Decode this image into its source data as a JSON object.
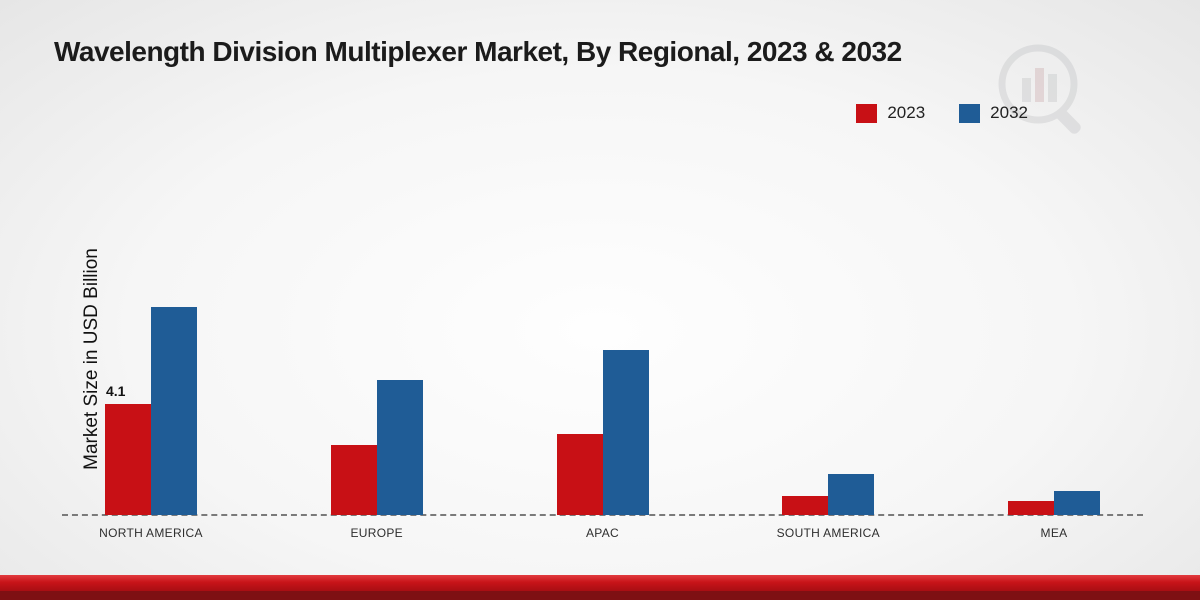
{
  "title": "Wavelength Division Multiplexer Market, By Regional, 2023 & 2032",
  "ylabel": "Market Size in USD Billion",
  "colors": {
    "series_2023": "#c81015",
    "series_2032": "#1f5c96"
  },
  "chart_data": {
    "type": "bar",
    "title": "Wavelength Division Multiplexer Market, By Regional, 2023 & 2032",
    "xlabel": "",
    "ylabel": "Market Size in USD Billion",
    "categories": [
      "NORTH AMERICA",
      "EUROPE",
      "APAC",
      "SOUTH AMERICA",
      "MEA"
    ],
    "series": [
      {
        "name": "2023",
        "color": "#c81015",
        "values": [
          4.1,
          2.6,
          3.0,
          0.7,
          0.5
        ]
      },
      {
        "name": "2032",
        "color": "#1f5c96",
        "values": [
          7.7,
          5.0,
          6.1,
          1.5,
          0.9
        ]
      }
    ],
    "annotations": [
      {
        "category": "NORTH AMERICA",
        "series": "2023",
        "text": "4.1"
      }
    ],
    "ylim": [
      0,
      8.5
    ],
    "grid": false,
    "legend_position": "top-right",
    "baseline_style": "dashed"
  }
}
